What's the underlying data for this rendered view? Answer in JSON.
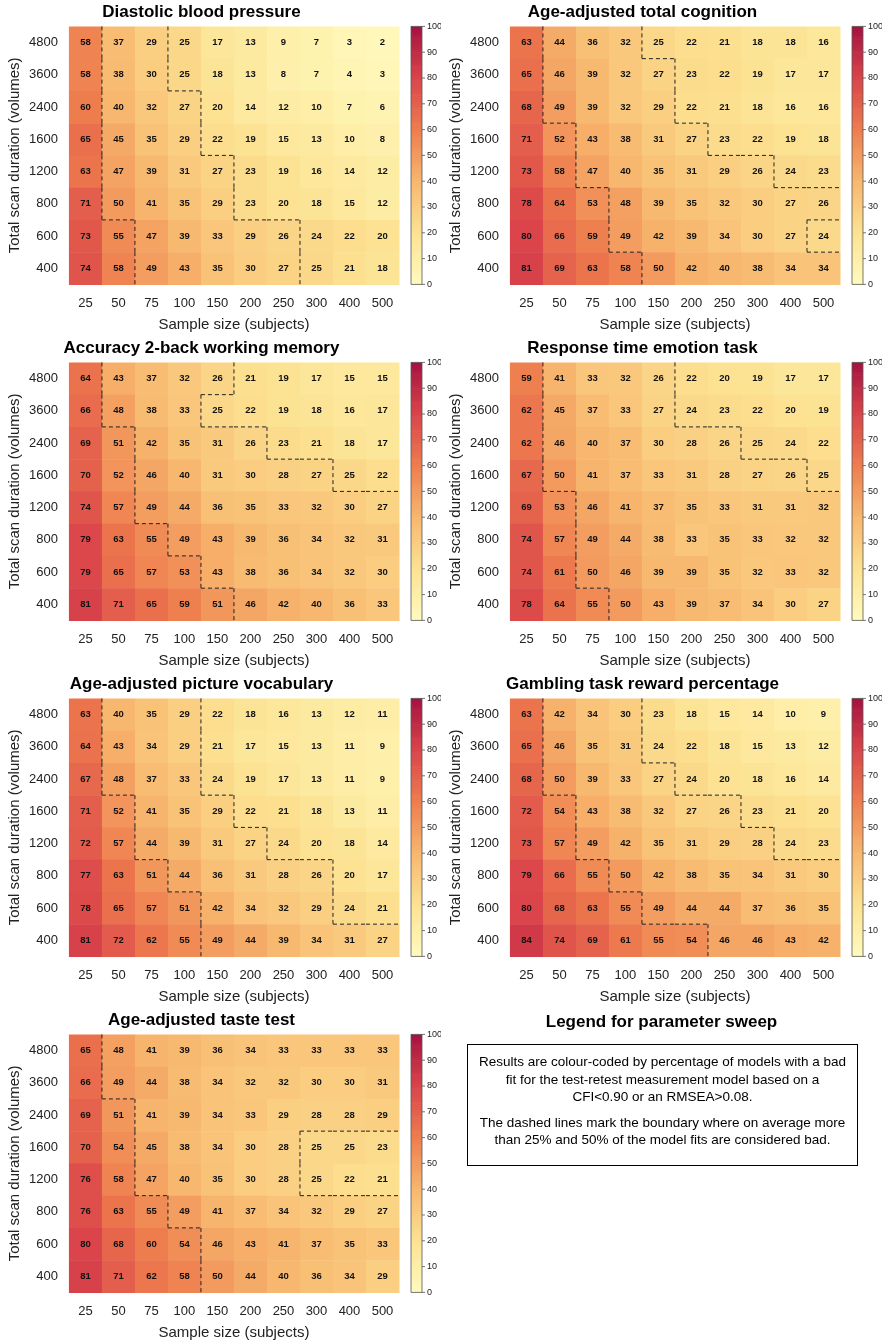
{
  "chart_data": [
    {
      "type": "heatmap",
      "title": "Diastolic blood pressure",
      "xlabel": "Sample size (subjects)",
      "ylabel": "Total scan duration (volumes)",
      "categories": [
        "25",
        "50",
        "75",
        "100",
        "150",
        "200",
        "250",
        "300",
        "400",
        "500"
      ],
      "y_categories": [
        "4800",
        "3600",
        "2400",
        "1600",
        "1200",
        "800",
        "600",
        "400"
      ],
      "clim": [
        0,
        100
      ],
      "cticks": [
        0,
        10,
        20,
        30,
        40,
        50,
        60,
        70,
        80,
        90,
        100
      ],
      "data_labels": true,
      "cells": [
        [
          58,
          37,
          29,
          25,
          17,
          13,
          9,
          7,
          3,
          2
        ],
        [
          58,
          38,
          30,
          25,
          18,
          13,
          8,
          7,
          4,
          3
        ],
        [
          60,
          40,
          32,
          27,
          20,
          14,
          12,
          10,
          7,
          6
        ],
        [
          65,
          45,
          35,
          29,
          22,
          19,
          15,
          13,
          10,
          8
        ],
        [
          63,
          47,
          39,
          31,
          27,
          23,
          19,
          16,
          14,
          12
        ],
        [
          71,
          50,
          41,
          35,
          29,
          23,
          20,
          18,
          15,
          12
        ],
        [
          73,
          55,
          47,
          39,
          33,
          29,
          26,
          24,
          22,
          20
        ],
        [
          74,
          58,
          49,
          43,
          35,
          30,
          27,
          25,
          21,
          18
        ]
      ]
    },
    {
      "type": "heatmap",
      "title": "Age-adjusted total cognition",
      "xlabel": "Sample size (subjects)",
      "ylabel": "Total scan duration (volumes)",
      "categories": [
        "25",
        "50",
        "75",
        "100",
        "150",
        "200",
        "250",
        "300",
        "400",
        "500"
      ],
      "y_categories": [
        "4800",
        "3600",
        "2400",
        "1600",
        "1200",
        "800",
        "600",
        "400"
      ],
      "clim": [
        0,
        100
      ],
      "cticks": [
        0,
        10,
        20,
        30,
        40,
        50,
        60,
        70,
        80,
        90,
        100
      ],
      "data_labels": true,
      "cells": [
        [
          63,
          44,
          36,
          32,
          25,
          22,
          21,
          18,
          18,
          16
        ],
        [
          65,
          46,
          39,
          32,
          27,
          23,
          22,
          19,
          17,
          17
        ],
        [
          68,
          49,
          39,
          32,
          29,
          22,
          21,
          18,
          16,
          16
        ],
        [
          71,
          52,
          43,
          38,
          31,
          27,
          23,
          22,
          19,
          18
        ],
        [
          73,
          58,
          47,
          40,
          35,
          31,
          29,
          26,
          24,
          23
        ],
        [
          78,
          64,
          53,
          48,
          39,
          35,
          32,
          30,
          27,
          26
        ],
        [
          80,
          66,
          59,
          49,
          42,
          39,
          34,
          30,
          27,
          24
        ],
        [
          81,
          69,
          63,
          58,
          50,
          42,
          40,
          38,
          34,
          34
        ]
      ]
    },
    {
      "type": "heatmap",
      "title": "Accuracy 2-back working memory",
      "xlabel": "Sample size (subjects)",
      "ylabel": "Total scan duration (volumes)",
      "categories": [
        "25",
        "50",
        "75",
        "100",
        "150",
        "200",
        "250",
        "300",
        "400",
        "500"
      ],
      "y_categories": [
        "4800",
        "3600",
        "2400",
        "1600",
        "1200",
        "800",
        "600",
        "400"
      ],
      "clim": [
        0,
        100
      ],
      "cticks": [
        0,
        10,
        20,
        30,
        40,
        50,
        60,
        70,
        80,
        90,
        100
      ],
      "data_labels": true,
      "cells": [
        [
          64,
          43,
          37,
          32,
          26,
          21,
          19,
          17,
          15,
          15
        ],
        [
          66,
          48,
          38,
          33,
          25,
          22,
          19,
          18,
          16,
          17
        ],
        [
          69,
          51,
          42,
          35,
          31,
          26,
          23,
          21,
          18,
          17
        ],
        [
          70,
          52,
          46,
          40,
          31,
          30,
          28,
          27,
          25,
          22
        ],
        [
          74,
          57,
          49,
          44,
          36,
          35,
          33,
          32,
          30,
          27
        ],
        [
          79,
          63,
          55,
          49,
          43,
          39,
          36,
          34,
          32,
          31
        ],
        [
          79,
          65,
          57,
          53,
          43,
          38,
          36,
          34,
          32,
          30
        ],
        [
          81,
          71,
          65,
          59,
          51,
          46,
          42,
          40,
          36,
          33
        ]
      ]
    },
    {
      "type": "heatmap",
      "title": "Response time emotion task",
      "xlabel": "Sample size (subjects)",
      "ylabel": "Total scan duration (volumes)",
      "categories": [
        "25",
        "50",
        "75",
        "100",
        "150",
        "200",
        "250",
        "300",
        "400",
        "500"
      ],
      "y_categories": [
        "4800",
        "3600",
        "2400",
        "1600",
        "1200",
        "800",
        "600",
        "400"
      ],
      "clim": [
        0,
        100
      ],
      "cticks": [
        0,
        10,
        20,
        30,
        40,
        50,
        60,
        70,
        80,
        90,
        100
      ],
      "data_labels": true,
      "cells": [
        [
          59,
          41,
          33,
          32,
          26,
          22,
          20,
          19,
          17,
          17
        ],
        [
          62,
          45,
          37,
          33,
          27,
          24,
          23,
          22,
          20,
          19
        ],
        [
          62,
          46,
          40,
          37,
          30,
          28,
          26,
          25,
          24,
          22
        ],
        [
          67,
          50,
          41,
          37,
          33,
          31,
          28,
          27,
          26,
          25
        ],
        [
          69,
          53,
          46,
          41,
          37,
          35,
          33,
          31,
          31,
          32
        ],
        [
          74,
          57,
          49,
          44,
          38,
          33,
          35,
          33,
          32,
          32
        ],
        [
          74,
          61,
          50,
          46,
          39,
          39,
          35,
          32,
          33,
          32
        ],
        [
          78,
          64,
          55,
          50,
          43,
          39,
          37,
          34,
          30,
          27
        ]
      ]
    },
    {
      "type": "heatmap",
      "title": "Age-adjusted picture vocabulary",
      "xlabel": "Sample size (subjects)",
      "ylabel": "Total scan duration (volumes)",
      "categories": [
        "25",
        "50",
        "75",
        "100",
        "150",
        "200",
        "250",
        "300",
        "400",
        "500"
      ],
      "y_categories": [
        "4800",
        "3600",
        "2400",
        "1600",
        "1200",
        "800",
        "600",
        "400"
      ],
      "clim": [
        0,
        100
      ],
      "cticks": [
        0,
        10,
        20,
        30,
        40,
        50,
        60,
        70,
        80,
        90,
        100
      ],
      "data_labels": true,
      "cells": [
        [
          63,
          40,
          35,
          29,
          22,
          18,
          16,
          13,
          12,
          11
        ],
        [
          64,
          43,
          34,
          29,
          21,
          17,
          15,
          13,
          11,
          9
        ],
        [
          67,
          48,
          37,
          33,
          24,
          19,
          17,
          13,
          11,
          9
        ],
        [
          71,
          52,
          41,
          35,
          29,
          22,
          21,
          18,
          13,
          11
        ],
        [
          72,
          57,
          44,
          39,
          31,
          27,
          24,
          20,
          18,
          14
        ],
        [
          77,
          63,
          51,
          44,
          36,
          31,
          28,
          26,
          20,
          17
        ],
        [
          78,
          65,
          57,
          51,
          42,
          34,
          32,
          29,
          24,
          21
        ],
        [
          81,
          72,
          62,
          55,
          49,
          44,
          39,
          34,
          31,
          27
        ]
      ]
    },
    {
      "type": "heatmap",
      "title": "Gambling task reward percentage",
      "xlabel": "Sample size (subjects)",
      "ylabel": "Total scan duration (volumes)",
      "categories": [
        "25",
        "50",
        "75",
        "100",
        "150",
        "200",
        "250",
        "300",
        "400",
        "500"
      ],
      "y_categories": [
        "4800",
        "3600",
        "2400",
        "1600",
        "1200",
        "800",
        "600",
        "400"
      ],
      "clim": [
        0,
        100
      ],
      "cticks": [
        0,
        10,
        20,
        30,
        40,
        50,
        60,
        70,
        80,
        90,
        100
      ],
      "data_labels": true,
      "cells": [
        [
          63,
          42,
          34,
          30,
          23,
          18,
          15,
          14,
          10,
          9
        ],
        [
          65,
          46,
          35,
          31,
          24,
          22,
          18,
          15,
          13,
          12
        ],
        [
          68,
          50,
          39,
          33,
          27,
          24,
          20,
          18,
          16,
          14
        ],
        [
          72,
          54,
          43,
          38,
          32,
          27,
          26,
          23,
          21,
          20
        ],
        [
          73,
          57,
          49,
          42,
          35,
          31,
          29,
          28,
          24,
          23
        ],
        [
          79,
          66,
          55,
          50,
          42,
          38,
          35,
          34,
          31,
          30
        ],
        [
          80,
          68,
          63,
          55,
          49,
          44,
          44,
          37,
          36,
          35
        ],
        [
          84,
          74,
          69,
          61,
          55,
          54,
          46,
          46,
          43,
          42
        ]
      ]
    },
    {
      "type": "heatmap",
      "title": "Age-adjusted taste test",
      "xlabel": "Sample size (subjects)",
      "ylabel": "Total scan duration (volumes)",
      "categories": [
        "25",
        "50",
        "75",
        "100",
        "150",
        "200",
        "250",
        "300",
        "400",
        "500"
      ],
      "y_categories": [
        "4800",
        "3600",
        "2400",
        "1600",
        "1200",
        "800",
        "600",
        "400"
      ],
      "clim": [
        0,
        100
      ],
      "cticks": [
        0,
        10,
        20,
        30,
        40,
        50,
        60,
        70,
        80,
        90,
        100
      ],
      "data_labels": true,
      "cells": [
        [
          65,
          48,
          41,
          39,
          36,
          34,
          33,
          33,
          33,
          33
        ],
        [
          66,
          49,
          44,
          38,
          34,
          32,
          32,
          30,
          30,
          31
        ],
        [
          69,
          51,
          41,
          39,
          34,
          33,
          29,
          28,
          28,
          29
        ],
        [
          70,
          54,
          45,
          38,
          34,
          30,
          28,
          25,
          25,
          23
        ],
        [
          76,
          58,
          47,
          40,
          35,
          30,
          28,
          25,
          22,
          21
        ],
        [
          76,
          63,
          55,
          49,
          41,
          37,
          34,
          32,
          29,
          27
        ],
        [
          80,
          68,
          60,
          54,
          46,
          43,
          41,
          37,
          35,
          33
        ],
        [
          81,
          71,
          62,
          58,
          50,
          44,
          40,
          36,
          34,
          29
        ]
      ]
    },
    {
      "type": "other",
      "title": "Legend for parameter sweep",
      "annotations": [
        "Results are colour-coded by percentage of models with a bad fit for the test-retest measurement model based on a CFI<0.90 or an RMSEA>0.08.",
        "The dashed lines mark the boundary where on average more than 25% and 50% of the model fits are considered bad."
      ]
    }
  ]
}
